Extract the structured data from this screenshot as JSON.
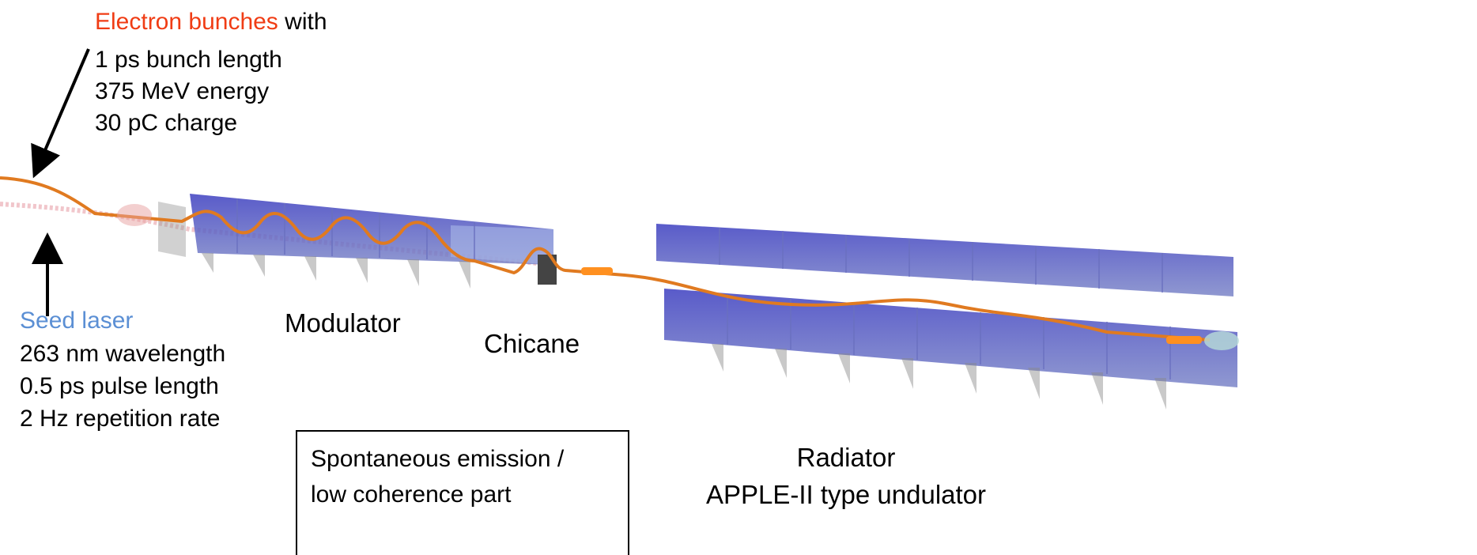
{
  "electron": {
    "title": "Electron bunches",
    "title_suffix": "with",
    "lines": [
      "1 ps bunch length",
      "375 MeV energy",
      "30 pC charge"
    ]
  },
  "seed": {
    "title": "Seed laser",
    "lines": [
      "263 nm wavelength",
      "0.5 ps pulse length",
      "2 Hz repetition rate"
    ]
  },
  "labels": {
    "modulator": "Modulator",
    "chicane": "Chicane",
    "radiator": [
      "Radiator",
      "APPLE-II type undulator"
    ]
  },
  "box": [
    "Spontaneous emission /",
    "low coherence part"
  ]
}
